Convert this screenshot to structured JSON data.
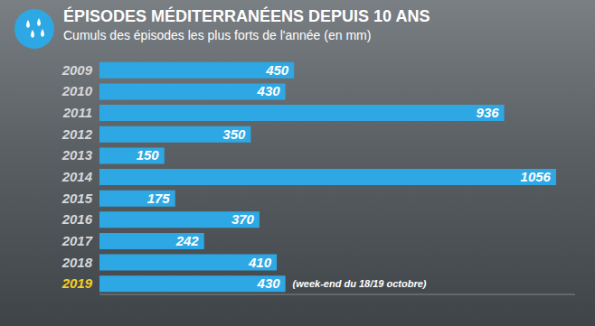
{
  "chart_data": {
    "type": "bar",
    "title": "ÉPISODES MÉDITERRANÉENS DEPUIS 10 ANS",
    "subtitle": "Cumuls des épisodes les plus forts de l'année (en mm)",
    "categories": [
      "2009",
      "2010",
      "2011",
      "2012",
      "2013",
      "2014",
      "2015",
      "2016",
      "2017",
      "2018",
      "2019"
    ],
    "values": [
      450,
      430,
      936,
      350,
      150,
      1056,
      175,
      370,
      242,
      410,
      430
    ],
    "color": "#2ea8e4",
    "orientation": "horizontal",
    "data_labels": true,
    "tick_labels": "y",
    "xlim": [
      0,
      1100
    ],
    "annotations": [
      {
        "text": "(week-end du 18/19 octobre)",
        "category": "2019"
      }
    ]
  }
}
